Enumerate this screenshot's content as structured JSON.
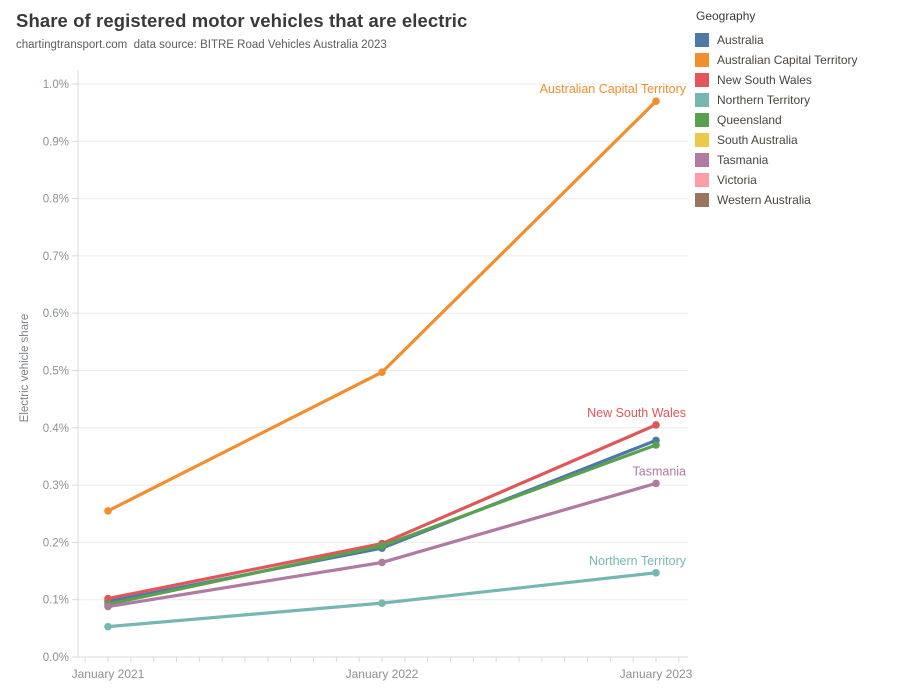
{
  "chart_data": {
    "type": "line",
    "title": "Share of registered motor vehicles that are electric",
    "subtitle": "chartingtransport.com  data source: BITRE Road Vehicles Australia 2023",
    "xlabel": "",
    "ylabel": "Electric vehicle share",
    "value_unit": "percent",
    "ylim": [
      0.0,
      1.0
    ],
    "ytick_step": 0.1,
    "grid": true,
    "x_categories": [
      "January 2021",
      "January 2022",
      "January 2023"
    ],
    "x_minor_ticks": "monthly",
    "legend": {
      "title": "Geography",
      "position": "top-right",
      "items": [
        {
          "label": "Australia",
          "color": "#4e79a7"
        },
        {
          "label": "Australian Capital Territory",
          "color": "#f28e2b"
        },
        {
          "label": "New South Wales",
          "color": "#e15759"
        },
        {
          "label": "Northern Territory",
          "color": "#76b7b2"
        },
        {
          "label": "Queensland",
          "color": "#59a14f"
        },
        {
          "label": "South Australia",
          "color": "#edc948"
        },
        {
          "label": "Tasmania",
          "color": "#b07aa1"
        },
        {
          "label": "Victoria",
          "color": "#ff9da7"
        },
        {
          "label": "Western Australia",
          "color": "#9c755f"
        }
      ]
    },
    "series": [
      {
        "name": "Australia",
        "color": "#4e79a7",
        "values": [
          0.097,
          0.19,
          0.378
        ]
      },
      {
        "name": "Australian Capital Territory",
        "color": "#f28e2b",
        "values": [
          0.255,
          0.497,
          0.97
        ],
        "end_label": "Australian Capital Territory"
      },
      {
        "name": "New South Wales",
        "color": "#e15759",
        "values": [
          0.102,
          0.198,
          0.405
        ],
        "end_label": "New South Wales"
      },
      {
        "name": "Northern Territory",
        "color": "#76b7b2",
        "values": [
          0.053,
          0.094,
          0.147
        ],
        "end_label": "Northern Territory"
      },
      {
        "name": "Queensland",
        "color": "#59a14f",
        "values": [
          0.092,
          0.194,
          0.37
        ]
      },
      {
        "name": "Tasmania",
        "color": "#b07aa1",
        "values": [
          0.088,
          0.165,
          0.303
        ],
        "end_label": "Tasmania"
      }
    ]
  }
}
